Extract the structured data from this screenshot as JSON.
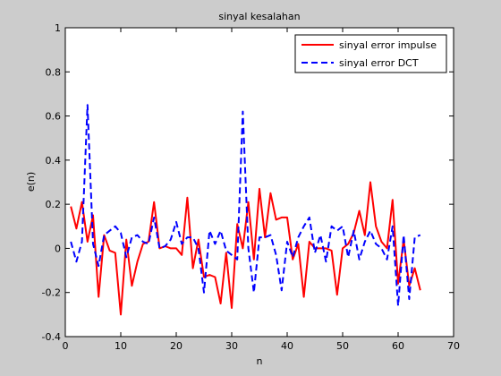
{
  "chart_data": {
    "type": "line",
    "title": "sinyal kesalahan",
    "xlabel": "n",
    "ylabel": "e(n)",
    "xlim": [
      0,
      70
    ],
    "ylim": [
      -0.4,
      1
    ],
    "xticks": [
      0,
      10,
      20,
      30,
      40,
      50,
      60,
      70
    ],
    "yticks": [
      -0.4,
      -0.2,
      0,
      0.2,
      0.4,
      0.6,
      0.8,
      1
    ],
    "grid": false,
    "legend_position": "top-right",
    "series": [
      {
        "name": "sinyal error impulse",
        "color": "#ff0000",
        "style": "solid",
        "x": [
          1,
          2,
          3,
          4,
          5,
          6,
          7,
          8,
          9,
          10,
          11,
          12,
          13,
          14,
          15,
          16,
          17,
          18,
          19,
          20,
          21,
          22,
          23,
          24,
          25,
          26,
          27,
          28,
          29,
          30,
          31,
          32,
          33,
          34,
          35,
          36,
          37,
          38,
          39,
          40,
          41,
          42,
          43,
          44,
          45,
          46,
          47,
          48,
          49,
          50,
          51,
          52,
          53,
          54,
          55,
          56,
          57,
          58,
          59,
          60,
          61,
          62,
          63,
          64
        ],
        "y": [
          0.19,
          0.09,
          0.21,
          0.03,
          0.15,
          -0.22,
          0.06,
          -0.01,
          -0.02,
          -0.3,
          0.04,
          -0.17,
          -0.06,
          0.02,
          0.03,
          0.21,
          0.0,
          0.01,
          0.0,
          0.0,
          -0.03,
          0.23,
          -0.09,
          0.04,
          -0.13,
          -0.12,
          -0.13,
          -0.25,
          -0.02,
          -0.27,
          0.11,
          0.0,
          0.21,
          -0.05,
          0.27,
          0.05,
          0.25,
          0.13,
          0.14,
          0.14,
          -0.05,
          0.02,
          -0.22,
          0.03,
          0.0,
          0.0,
          0.0,
          -0.01,
          -0.21,
          0.0,
          0.02,
          0.07,
          0.17,
          0.06,
          0.3,
          0.1,
          0.03,
          0.0,
          0.22,
          -0.16,
          0.04,
          -0.17,
          -0.09,
          -0.19
        ]
      },
      {
        "name": "sinyal error DCT",
        "color": "#0000ff",
        "style": "dashed",
        "x": [
          1,
          2,
          3,
          4,
          5,
          6,
          7,
          8,
          9,
          10,
          11,
          12,
          13,
          14,
          15,
          16,
          17,
          18,
          19,
          20,
          21,
          22,
          23,
          24,
          25,
          26,
          27,
          28,
          29,
          30,
          31,
          32,
          33,
          34,
          35,
          36,
          37,
          38,
          39,
          40,
          41,
          42,
          43,
          44,
          45,
          46,
          47,
          48,
          49,
          50,
          51,
          52,
          53,
          54,
          55,
          56,
          57,
          58,
          59,
          60,
          61,
          62,
          63,
          64
        ],
        "y": [
          0.03,
          -0.06,
          0.03,
          0.65,
          0.02,
          -0.08,
          0.06,
          0.08,
          0.1,
          0.07,
          -0.04,
          0.05,
          0.06,
          0.03,
          0.02,
          0.14,
          0.0,
          0.01,
          0.04,
          0.12,
          0.02,
          0.05,
          0.05,
          0.0,
          -0.2,
          0.08,
          0.02,
          0.08,
          -0.01,
          -0.03,
          -0.05,
          0.62,
          0.0,
          -0.2,
          0.05,
          0.05,
          0.06,
          -0.03,
          -0.19,
          0.03,
          -0.04,
          0.05,
          0.1,
          0.14,
          -0.02,
          0.06,
          -0.06,
          0.1,
          0.08,
          0.1,
          -0.04,
          0.08,
          -0.05,
          0.03,
          0.08,
          0.02,
          0.0,
          -0.05,
          0.1,
          -0.26,
          0.06,
          -0.23,
          0.05,
          0.06
        ]
      }
    ]
  }
}
